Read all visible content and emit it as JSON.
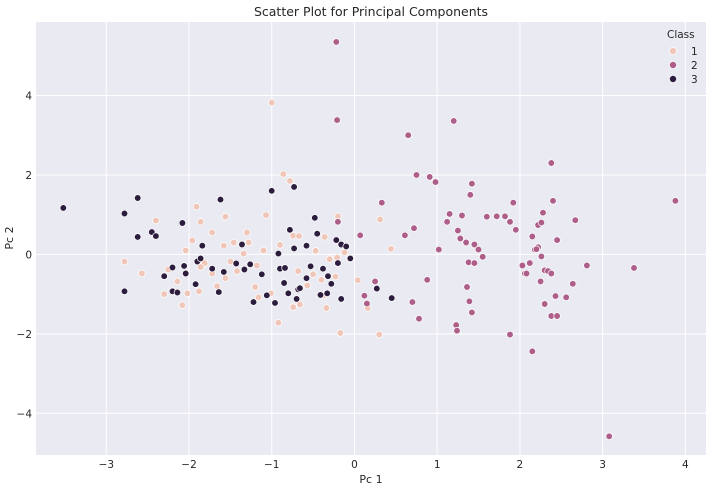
{
  "chart_data": {
    "type": "scatter",
    "title": "Scatter Plot for Principal Components",
    "xlabel": "Pc 1",
    "ylabel": "Pc 2",
    "xlim": [
      -3.85,
      4.25
    ],
    "ylim": [
      -5.05,
      5.85
    ],
    "xticks": [
      -3,
      -2,
      -1,
      0,
      1,
      2,
      3,
      4
    ],
    "yticks": [
      -4,
      -2,
      0,
      2,
      4
    ],
    "grid": true,
    "background": "#eaeaf2",
    "legend": {
      "title": "Class",
      "placement": "top-right",
      "entries": [
        {
          "label": "1",
          "color": "#f0c6b8"
        },
        {
          "label": "2",
          "color": "#ad5f89"
        },
        {
          "label": "3",
          "color": "#2c1d3e"
        }
      ]
    },
    "series": [
      {
        "class": "1",
        "color": "#f0c6b8",
        "points": [
          [
            -1.0,
            3.82
          ],
          [
            -0.86,
            2.02
          ],
          [
            -0.78,
            1.85
          ],
          [
            -1.62,
            1.38
          ],
          [
            -1.91,
            1.2
          ],
          [
            -2.4,
            0.85
          ],
          [
            -1.86,
            0.82
          ],
          [
            -1.72,
            0.55
          ],
          [
            -1.56,
            0.95
          ],
          [
            -1.07,
            0.99
          ],
          [
            -1.3,
            0.55
          ],
          [
            -1.46,
            0.3
          ],
          [
            -1.58,
            0.22
          ],
          [
            -1.28,
            0.3
          ],
          [
            -1.34,
            0.02
          ],
          [
            -1.5,
            -0.18
          ],
          [
            -1.18,
            -0.28
          ],
          [
            -1.42,
            -0.42
          ],
          [
            -1.56,
            -0.6
          ],
          [
            -1.72,
            -0.48
          ],
          [
            -1.81,
            -0.22
          ],
          [
            -1.96,
            0.35
          ],
          [
            -2.04,
            0.1
          ],
          [
            -1.86,
            -0.32
          ],
          [
            -1.66,
            -0.8
          ],
          [
            -1.88,
            -0.93
          ],
          [
            -2.14,
            -0.68
          ],
          [
            -2.02,
            -0.98
          ],
          [
            -2.08,
            -1.28
          ],
          [
            -2.3,
            -1.0
          ],
          [
            -2.57,
            -0.48
          ],
          [
            -2.78,
            -0.18
          ],
          [
            -2.25,
            -0.38
          ],
          [
            -1.2,
            -0.82
          ],
          [
            -1.16,
            -1.08
          ],
          [
            -1.01,
            -0.98
          ],
          [
            -0.92,
            -1.72
          ],
          [
            -0.74,
            -1.33
          ],
          [
            -0.66,
            -1.26
          ],
          [
            -0.5,
            -0.5
          ],
          [
            -0.57,
            -0.78
          ],
          [
            -0.68,
            -0.42
          ],
          [
            -0.74,
            0.47
          ],
          [
            -0.67,
            0.46
          ],
          [
            -0.47,
            0.09
          ],
          [
            -0.36,
            0.44
          ],
          [
            -0.3,
            -0.12
          ],
          [
            -0.21,
            -0.08
          ],
          [
            -0.12,
            0.05
          ],
          [
            -0.06,
            -0.12
          ],
          [
            -0.17,
            -1.98
          ],
          [
            0.04,
            -0.65
          ],
          [
            0.16,
            -1.35
          ],
          [
            0.31,
            0.88
          ],
          [
            0.44,
            0.14
          ],
          [
            0.3,
            -2.02
          ],
          [
            -0.38,
            -1.04
          ],
          [
            -0.34,
            -1.35
          ],
          [
            -0.23,
            -0.56
          ],
          [
            -0.4,
            -0.64
          ],
          [
            -0.9,
            0.24
          ],
          [
            -1.1,
            0.1
          ],
          [
            -0.2,
            0.96
          ]
        ]
      },
      {
        "class": "2",
        "color": "#ad5f89",
        "points": [
          [
            -0.22,
            5.35
          ],
          [
            -0.21,
            3.38
          ],
          [
            1.2,
            3.36
          ],
          [
            0.65,
            3.0
          ],
          [
            0.75,
            2.0
          ],
          [
            0.91,
            1.95
          ],
          [
            0.98,
            1.82
          ],
          [
            0.33,
            1.3
          ],
          [
            1.42,
            1.78
          ],
          [
            1.4,
            1.5
          ],
          [
            1.15,
            1.02
          ],
          [
            1.3,
            0.98
          ],
          [
            1.12,
            0.82
          ],
          [
            1.25,
            0.6
          ],
          [
            1.28,
            0.4
          ],
          [
            1.35,
            0.3
          ],
          [
            1.45,
            0.25
          ],
          [
            1.5,
            0.12
          ],
          [
            1.38,
            -0.2
          ],
          [
            1.45,
            -0.22
          ],
          [
            1.55,
            -0.06
          ],
          [
            1.02,
            0.12
          ],
          [
            0.07,
            0.48
          ],
          [
            0.61,
            0.48
          ],
          [
            0.72,
            0.66
          ],
          [
            0.88,
            -0.64
          ],
          [
            0.78,
            -1.62
          ],
          [
            0.7,
            -1.2
          ],
          [
            1.23,
            -1.78
          ],
          [
            1.24,
            -1.92
          ],
          [
            1.36,
            -0.82
          ],
          [
            1.39,
            -1.18
          ],
          [
            1.42,
            -1.46
          ],
          [
            1.72,
            0.96
          ],
          [
            1.82,
            0.96
          ],
          [
            1.88,
            0.82
          ],
          [
            1.92,
            1.3
          ],
          [
            1.95,
            0.62
          ],
          [
            2.03,
            -0.28
          ],
          [
            2.06,
            -0.48
          ],
          [
            2.12,
            -0.22
          ],
          [
            2.15,
            0.45
          ],
          [
            2.18,
            0.12
          ],
          [
            2.22,
            0.74
          ],
          [
            2.26,
            0.8
          ],
          [
            2.28,
            1.05
          ],
          [
            2.3,
            -0.4
          ],
          [
            2.34,
            -0.42
          ],
          [
            2.38,
            2.3
          ],
          [
            2.4,
            1.35
          ],
          [
            2.43,
            -1.05
          ],
          [
            2.45,
            0.36
          ],
          [
            2.38,
            -0.48
          ],
          [
            2.25,
            -0.68
          ],
          [
            2.3,
            -1.25
          ],
          [
            2.38,
            -1.55
          ],
          [
            2.45,
            -1.55
          ],
          [
            2.56,
            -1.08
          ],
          [
            2.64,
            -0.74
          ],
          [
            2.67,
            0.86
          ],
          [
            2.81,
            -0.28
          ],
          [
            3.38,
            -0.34
          ],
          [
            3.88,
            1.35
          ],
          [
            3.08,
            -4.58
          ],
          [
            1.88,
            -2.02
          ],
          [
            2.15,
            -2.44
          ],
          [
            2.22,
            0.18
          ],
          [
            2.08,
            -0.48
          ],
          [
            2.26,
            -0.05
          ],
          [
            1.6,
            0.95
          ],
          [
            2.2,
            0.13
          ],
          [
            0.12,
            -1.04
          ],
          [
            0.15,
            -1.24
          ],
          [
            0.25,
            -0.68
          ],
          [
            -0.2,
            0.82
          ]
        ]
      },
      {
        "class": "3",
        "color": "#2c1d3e",
        "points": [
          [
            -3.52,
            1.17
          ],
          [
            -2.78,
            1.03
          ],
          [
            -2.78,
            -0.93
          ],
          [
            -2.62,
            1.42
          ],
          [
            -2.62,
            0.44
          ],
          [
            -2.45,
            0.56
          ],
          [
            -2.4,
            0.46
          ],
          [
            -2.3,
            -0.55
          ],
          [
            -2.2,
            -0.33
          ],
          [
            -2.2,
            -0.93
          ],
          [
            -2.14,
            -0.96
          ],
          [
            -2.08,
            0.79
          ],
          [
            -2.06,
            -0.29
          ],
          [
            -2.04,
            -0.48
          ],
          [
            -1.9,
            -0.18
          ],
          [
            -1.92,
            -0.75
          ],
          [
            -1.84,
            0.22
          ],
          [
            -1.86,
            -0.1
          ],
          [
            -1.72,
            -0.36
          ],
          [
            -1.64,
            -0.95
          ],
          [
            -1.62,
            1.38
          ],
          [
            -1.58,
            -0.44
          ],
          [
            -1.43,
            -0.23
          ],
          [
            -1.36,
            0.25
          ],
          [
            -1.33,
            -0.38
          ],
          [
            -1.26,
            -0.25
          ],
          [
            -1.22,
            -1.2
          ],
          [
            -1.12,
            -0.5
          ],
          [
            -1.06,
            -1.03
          ],
          [
            -1.0,
            1.6
          ],
          [
            -0.96,
            -1.22
          ],
          [
            -0.92,
            0.02
          ],
          [
            -0.9,
            -0.36
          ],
          [
            -0.84,
            -0.34
          ],
          [
            -0.8,
            -0.98
          ],
          [
            -0.78,
            0.62
          ],
          [
            -0.73,
            1.7
          ],
          [
            -0.73,
            0.15
          ],
          [
            -0.68,
            -0.88
          ],
          [
            -0.66,
            -0.85
          ],
          [
            -0.58,
            0.22
          ],
          [
            -0.53,
            -0.3
          ],
          [
            -0.48,
            0.92
          ],
          [
            -0.45,
            0.52
          ],
          [
            -0.41,
            -1.02
          ],
          [
            -0.38,
            -0.36
          ],
          [
            -0.33,
            -0.98
          ],
          [
            -0.28,
            -0.74
          ],
          [
            -0.22,
            0.36
          ],
          [
            -0.2,
            -0.22
          ],
          [
            -0.16,
            0.25
          ],
          [
            -0.16,
            -1.12
          ],
          [
            -0.1,
            0.2
          ],
          [
            -0.05,
            -0.1
          ],
          [
            0.27,
            -0.86
          ],
          [
            0.45,
            -1.1
          ],
          [
            -0.7,
            -1.12
          ],
          [
            -0.32,
            -0.55
          ],
          [
            -0.85,
            -0.72
          ],
          [
            -0.58,
            -0.6
          ]
        ]
      }
    ]
  }
}
